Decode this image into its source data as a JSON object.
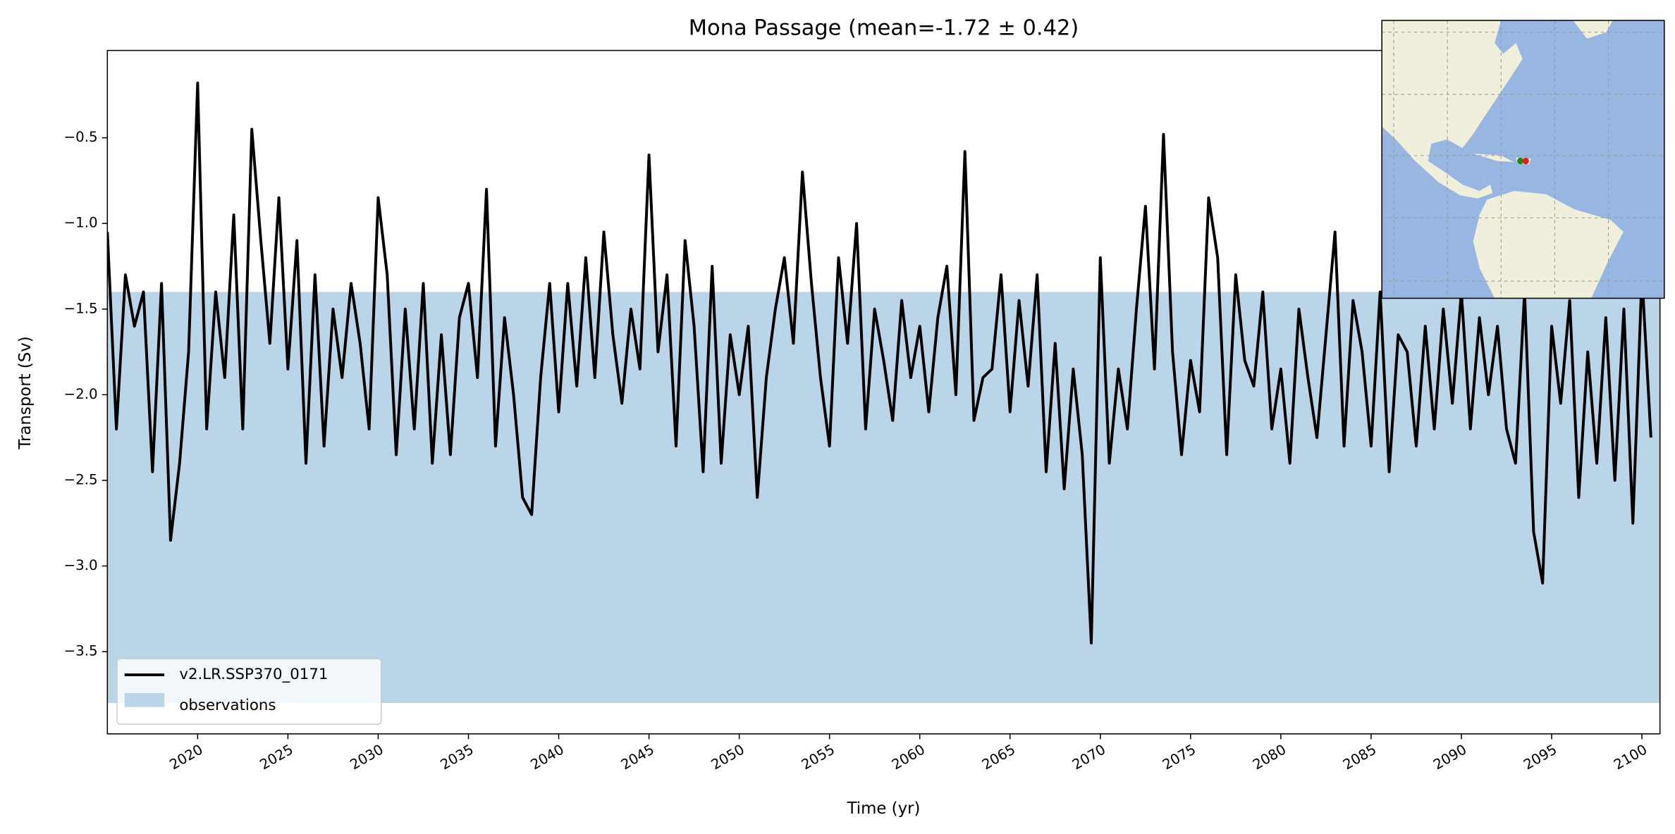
{
  "chart_data": {
    "type": "line",
    "title": "Mona Passage (mean=-1.72 ± 0.42)",
    "xlabel": "Time (yr)",
    "ylabel": "Transport (Sv)",
    "xlim": [
      2015,
      2101
    ],
    "ylim": [
      -3.98,
      0.01
    ],
    "xticks": [
      2020,
      2025,
      2030,
      2035,
      2040,
      2045,
      2050,
      2055,
      2060,
      2065,
      2070,
      2075,
      2080,
      2085,
      2090,
      2095,
      2100
    ],
    "yticks": [
      {
        "value": -3.5,
        "label": "−3.5"
      },
      {
        "value": -3.0,
        "label": "−3.0"
      },
      {
        "value": -2.5,
        "label": "−2.5"
      },
      {
        "value": -2.0,
        "label": "−2.0"
      },
      {
        "value": -1.5,
        "label": "−1.5"
      },
      {
        "value": -1.0,
        "label": "−1.0"
      },
      {
        "value": -0.5,
        "label": "−0.5"
      }
    ],
    "legend": "lower left",
    "band": {
      "name": "observations",
      "ymin": -3.8,
      "ymax": -1.4,
      "color": "#bad4e8"
    },
    "x": [
      2015,
      2015.5,
      2016,
      2016.5,
      2017,
      2017.5,
      2018,
      2018.5,
      2019,
      2019.5,
      2020,
      2020.5,
      2021,
      2021.5,
      2022,
      2022.5,
      2023,
      2023.5,
      2024,
      2024.5,
      2025,
      2025.5,
      2026,
      2026.5,
      2027,
      2027.5,
      2028,
      2028.5,
      2029,
      2029.5,
      2030,
      2030.5,
      2031,
      2031.5,
      2032,
      2032.5,
      2033,
      2033.5,
      2034,
      2034.5,
      2035,
      2035.5,
      2036,
      2036.5,
      2037,
      2037.5,
      2038,
      2038.5,
      2039,
      2039.5,
      2040,
      2040.5,
      2041,
      2041.5,
      2042,
      2042.5,
      2043,
      2043.5,
      2044,
      2044.5,
      2045,
      2045.5,
      2046,
      2046.5,
      2047,
      2047.5,
      2048,
      2048.5,
      2049,
      2049.5,
      2050,
      2050.5,
      2051,
      2051.5,
      2052,
      2052.5,
      2053,
      2053.5,
      2054,
      2054.5,
      2055,
      2055.5,
      2056,
      2056.5,
      2057,
      2057.5,
      2058,
      2058.5,
      2059,
      2059.5,
      2060,
      2060.5,
      2061,
      2061.5,
      2062,
      2062.5,
      2063,
      2063.5,
      2064,
      2064.5,
      2065,
      2065.5,
      2066,
      2066.5,
      2067,
      2067.5,
      2068,
      2068.5,
      2069,
      2069.5,
      2070,
      2070.5,
      2071,
      2071.5,
      2072,
      2072.5,
      2073,
      2073.5,
      2074,
      2074.5,
      2075,
      2075.5,
      2076,
      2076.5,
      2077,
      2077.5,
      2078,
      2078.5,
      2079,
      2079.5,
      2080,
      2080.5,
      2081,
      2081.5,
      2082,
      2082.5,
      2083,
      2083.5,
      2084,
      2084.5,
      2085,
      2085.5,
      2086,
      2086.5,
      2087,
      2087.5,
      2088,
      2088.5,
      2089,
      2089.5,
      2090,
      2090.5,
      2091,
      2091.5,
      2092,
      2092.5,
      2093,
      2093.5,
      2094,
      2094.5,
      2095,
      2095.5,
      2096,
      2096.5,
      2097,
      2097.5,
      2098,
      2098.5,
      2099,
      2099.5,
      2100,
      2100.5
    ],
    "series": [
      {
        "name": "v2.LR.SSP370_0171",
        "color": "#000000",
        "values": [
          -1.05,
          -2.2,
          -1.3,
          -1.6,
          -1.4,
          -2.45,
          -1.35,
          -2.85,
          -2.4,
          -1.75,
          -0.18,
          -2.2,
          -1.4,
          -1.9,
          -0.95,
          -2.2,
          -0.45,
          -1.1,
          -1.7,
          -0.85,
          -1.85,
          -1.1,
          -2.4,
          -1.3,
          -2.3,
          -1.5,
          -1.9,
          -1.35,
          -1.7,
          -2.2,
          -0.85,
          -1.3,
          -2.35,
          -1.5,
          -2.2,
          -1.35,
          -2.4,
          -1.65,
          -2.35,
          -1.55,
          -1.35,
          -1.9,
          -0.8,
          -2.3,
          -1.55,
          -2.0,
          -2.6,
          -2.7,
          -1.9,
          -1.35,
          -2.1,
          -1.35,
          -1.95,
          -1.2,
          -1.9,
          -1.05,
          -1.65,
          -2.05,
          -1.5,
          -1.85,
          -0.6,
          -1.75,
          -1.3,
          -2.3,
          -1.1,
          -1.6,
          -2.45,
          -1.25,
          -2.4,
          -1.65,
          -2.0,
          -1.6,
          -2.6,
          -1.9,
          -1.5,
          -1.2,
          -1.7,
          -0.7,
          -1.35,
          -1.9,
          -2.3,
          -1.2,
          -1.7,
          -1.0,
          -2.2,
          -1.5,
          -1.8,
          -2.15,
          -1.45,
          -1.9,
          -1.6,
          -2.1,
          -1.55,
          -1.25,
          -2.0,
          -0.58,
          -2.15,
          -1.9,
          -1.85,
          -1.3,
          -2.1,
          -1.45,
          -1.95,
          -1.3,
          -2.45,
          -1.7,
          -2.55,
          -1.85,
          -2.35,
          -3.45,
          -1.2,
          -2.4,
          -1.85,
          -2.2,
          -1.5,
          -0.9,
          -1.85,
          -0.48,
          -1.75,
          -2.35,
          -1.8,
          -2.1,
          -0.85,
          -1.2,
          -2.35,
          -1.3,
          -1.8,
          -1.95,
          -1.4,
          -2.2,
          -1.85,
          -2.4,
          -1.5,
          -1.9,
          -2.25,
          -1.65,
          -1.05,
          -2.3,
          -1.45,
          -1.75,
          -2.3,
          -1.4,
          -2.45,
          -1.65,
          -1.75,
          -2.3,
          -1.6,
          -2.2,
          -1.5,
          -2.05,
          -1.4,
          -2.2,
          -1.55,
          -2.0,
          -1.6,
          -2.2,
          -2.4,
          -1.4,
          -2.8,
          -3.1,
          -1.6,
          -2.05,
          -1.45,
          -2.6,
          -1.75,
          -2.4,
          -1.55,
          -2.5,
          -1.5,
          -2.75,
          -1.3,
          -2.25
        ]
      }
    ]
  }
}
